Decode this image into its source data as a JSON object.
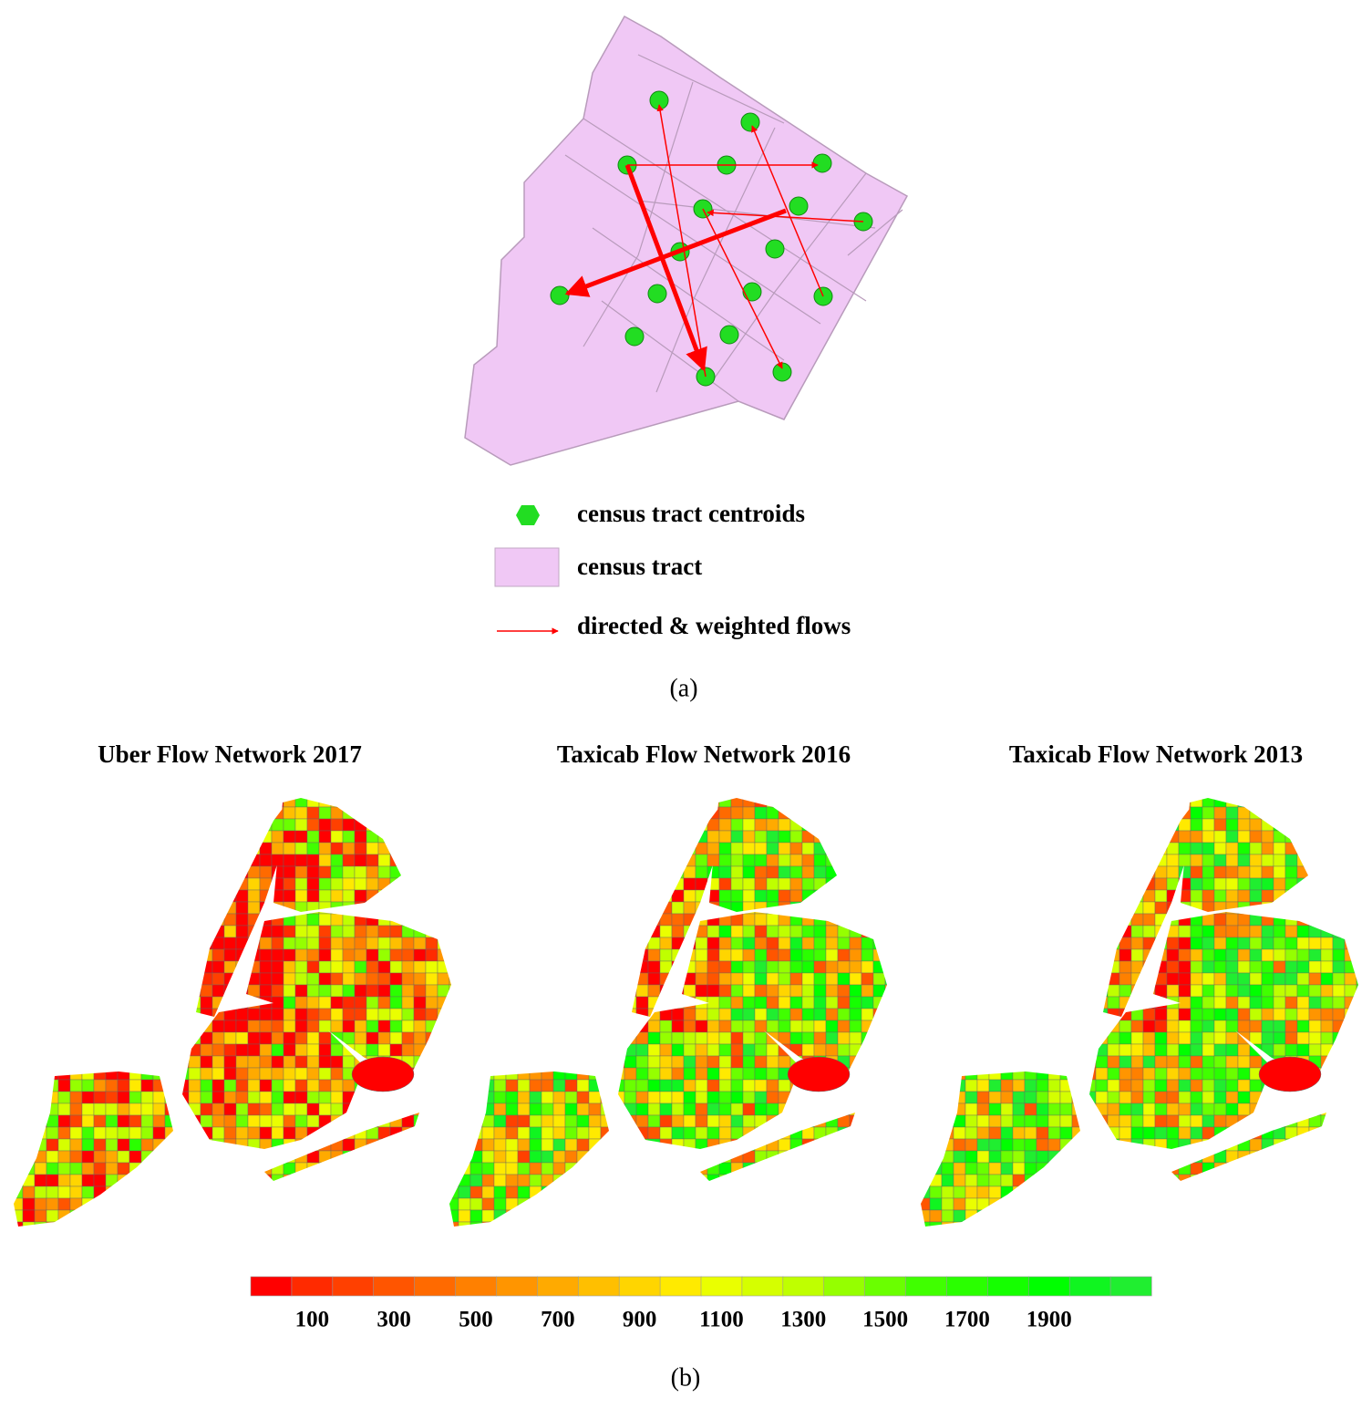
{
  "diagram": {
    "legend": [
      {
        "label": "census tract centroids"
      },
      {
        "label": "census tract"
      },
      {
        "label": "directed & weighted flows"
      }
    ],
    "caption": "(a)"
  },
  "maps": [
    {
      "title": "Uber Flow Network 2017"
    },
    {
      "title": "Taxicab Flow Network 2016"
    },
    {
      "title": "Taxicab Flow Network 2013"
    }
  ],
  "colorbar": {
    "lim": [
      -50,
      2150
    ],
    "ticks": [
      100,
      300,
      500,
      700,
      900,
      1100,
      1300,
      1500,
      1700,
      1900
    ],
    "colors": [
      "#ff0000",
      "#ff2a00",
      "#ff4000",
      "#ff5500",
      "#ff6a00",
      "#ff8000",
      "#ff9500",
      "#ffaa00",
      "#ffbf00",
      "#ffd500",
      "#ffea00",
      "#eaff00",
      "#d5ff00",
      "#bfff00",
      "#95ff00",
      "#6aff00",
      "#40ff00",
      "#2aff00",
      "#15ff00",
      "#00ff00",
      "#10f520",
      "#20ee30"
    ]
  },
  "caption": "(b)"
}
